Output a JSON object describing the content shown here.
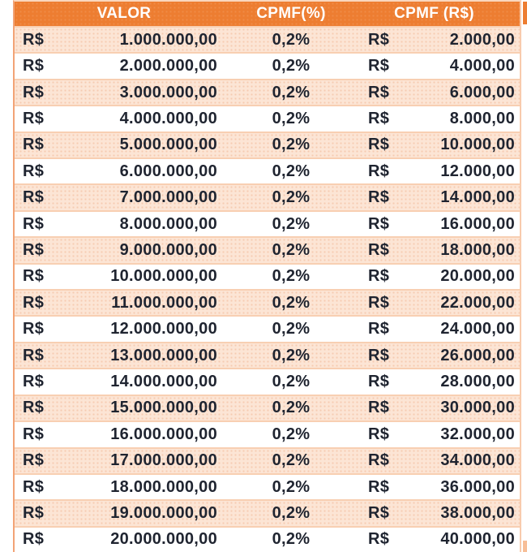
{
  "table": {
    "headers": [
      "VALOR",
      "CPMF(%)",
      "CPMF (R$)"
    ],
    "currency_symbol": "R$",
    "rows": [
      {
        "valor": "1.000.000,00",
        "cpmf_pct": "0,2%",
        "cpmf_rs": "2.000,00"
      },
      {
        "valor": "2.000.000,00",
        "cpmf_pct": "0,2%",
        "cpmf_rs": "4.000,00"
      },
      {
        "valor": "3.000.000,00",
        "cpmf_pct": "0,2%",
        "cpmf_rs": "6.000,00"
      },
      {
        "valor": "4.000.000,00",
        "cpmf_pct": "0,2%",
        "cpmf_rs": "8.000,00"
      },
      {
        "valor": "5.000.000,00",
        "cpmf_pct": "0,2%",
        "cpmf_rs": "10.000,00"
      },
      {
        "valor": "6.000.000,00",
        "cpmf_pct": "0,2%",
        "cpmf_rs": "12.000,00"
      },
      {
        "valor": "7.000.000,00",
        "cpmf_pct": "0,2%",
        "cpmf_rs": "14.000,00"
      },
      {
        "valor": "8.000.000,00",
        "cpmf_pct": "0,2%",
        "cpmf_rs": "16.000,00"
      },
      {
        "valor": "9.000.000,00",
        "cpmf_pct": "0,2%",
        "cpmf_rs": "18.000,00"
      },
      {
        "valor": "10.000.000,00",
        "cpmf_pct": "0,2%",
        "cpmf_rs": "20.000,00"
      },
      {
        "valor": "11.000.000,00",
        "cpmf_pct": "0,2%",
        "cpmf_rs": "22.000,00"
      },
      {
        "valor": "12.000.000,00",
        "cpmf_pct": "0,2%",
        "cpmf_rs": "24.000,00"
      },
      {
        "valor": "13.000.000,00",
        "cpmf_pct": "0,2%",
        "cpmf_rs": "26.000,00"
      },
      {
        "valor": "14.000.000,00",
        "cpmf_pct": "0,2%",
        "cpmf_rs": "28.000,00"
      },
      {
        "valor": "15.000.000,00",
        "cpmf_pct": "0,2%",
        "cpmf_rs": "30.000,00"
      },
      {
        "valor": "16.000.000,00",
        "cpmf_pct": "0,2%",
        "cpmf_rs": "32.000,00"
      },
      {
        "valor": "17.000.000,00",
        "cpmf_pct": "0,2%",
        "cpmf_rs": "34.000,00"
      },
      {
        "valor": "18.000.000,00",
        "cpmf_pct": "0,2%",
        "cpmf_rs": "36.000,00"
      },
      {
        "valor": "19.000.000,00",
        "cpmf_pct": "0,2%",
        "cpmf_rs": "38.000,00"
      },
      {
        "valor": "20.000.000,00",
        "cpmf_pct": "0,2%",
        "cpmf_rs": "40.000,00"
      }
    ]
  },
  "colors": {
    "header_bg": "#ED7D31",
    "band_bg": "#FCE5D5",
    "row_border": "#F8CFB2",
    "outer_border_left": "#F2A376",
    "header_text": "#FFFFFF",
    "body_text": "#1F2430"
  },
  "chart_data": {
    "type": "table",
    "title": "",
    "columns": [
      "VALOR",
      "CPMF(%)",
      "CPMF (R$)"
    ],
    "currency": "R$",
    "valor_values": [
      1000000,
      2000000,
      3000000,
      4000000,
      5000000,
      6000000,
      7000000,
      8000000,
      9000000,
      10000000,
      11000000,
      12000000,
      13000000,
      14000000,
      15000000,
      16000000,
      17000000,
      18000000,
      19000000,
      20000000
    ],
    "cpmf_rate_percent": 0.2,
    "cpmf_values": [
      2000,
      4000,
      6000,
      8000,
      10000,
      12000,
      14000,
      16000,
      18000,
      20000,
      22000,
      24000,
      26000,
      28000,
      30000,
      32000,
      34000,
      36000,
      38000,
      40000
    ],
    "layout": {
      "banded_rows": true,
      "header_position": "top",
      "number_format": "pt-BR"
    }
  }
}
